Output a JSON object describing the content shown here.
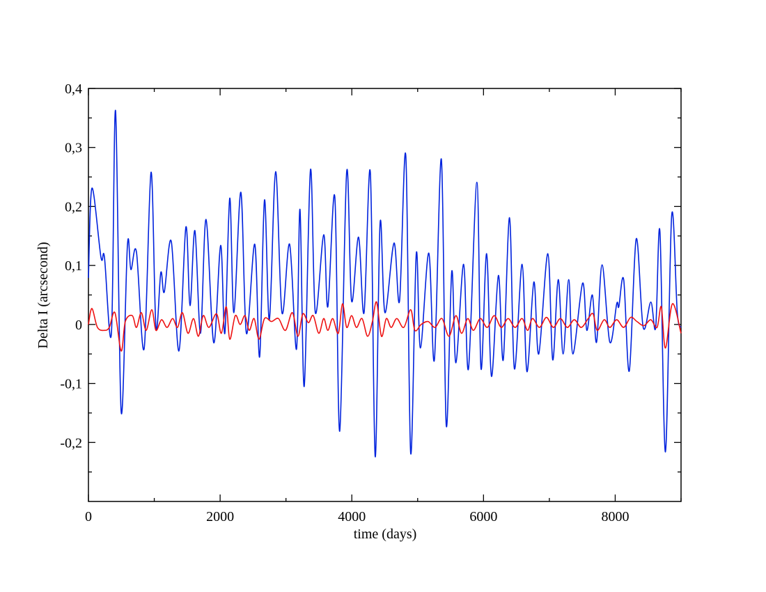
{
  "chart_data": {
    "type": "line",
    "xlabel": "time (days)",
    "ylabel": "Delta I (arcsecond)",
    "xlim": [
      0,
      9000
    ],
    "ylim": [
      -0.3,
      0.4
    ],
    "xticks": [
      0,
      2000,
      4000,
      6000,
      8000
    ],
    "xticks_minor": [
      1000,
      3000,
      5000,
      7000,
      9000
    ],
    "yticks": [
      {
        "value": -0.2,
        "label": "-0,2"
      },
      {
        "value": -0.1,
        "label": "-0,1"
      },
      0,
      {
        "value": 0.1,
        "label": "0,1"
      },
      {
        "value": 0.2,
        "label": "0,2"
      },
      {
        "value": 0.3,
        "label": "0,3"
      },
      {
        "value": 0.4,
        "label": "0,4"
      }
    ],
    "yticks_minor": [
      -0.25,
      -0.15,
      -0.05,
      0.05,
      0.15,
      0.25,
      0.35
    ],
    "series": [
      {
        "color": "#0022dd",
        "x": [
          0,
          53,
          190,
          243,
          349,
          412,
          497,
          592,
          645,
          729,
          846,
          951,
          1025,
          1099,
          1152,
          1258,
          1374,
          1480,
          1543,
          1617,
          1702,
          1786,
          1903,
          2008,
          2072,
          2146,
          2209,
          2315,
          2399,
          2526,
          2600,
          2674,
          2748,
          2843,
          2939,
          3055,
          3160,
          3213,
          3277,
          3372,
          3446,
          3573,
          3636,
          3742,
          3816,
          3922,
          3996,
          4102,
          4186,
          4281,
          4355,
          4429,
          4503,
          4641,
          4725,
          4820,
          4894,
          4979,
          5042,
          5169,
          5254,
          5360,
          5434,
          5518,
          5581,
          5698,
          5772,
          5899,
          5962,
          6047,
          6121,
          6226,
          6300,
          6395,
          6469,
          6586,
          6660,
          6765,
          6839,
          6977,
          7051,
          7135,
          7209,
          7294,
          7357,
          7505,
          7569,
          7653,
          7717,
          7801,
          7918,
          8023,
          8055,
          8129,
          8214,
          8319,
          8425,
          8541,
          8615,
          8679,
          8763,
          8858,
          8943,
          9000
        ],
        "values": [
          0.079,
          0.231,
          0.114,
          0.114,
          -0.015,
          0.362,
          -0.148,
          0.134,
          0.093,
          0.123,
          -0.041,
          0.258,
          -0.004,
          0.088,
          0.055,
          0.141,
          -0.045,
          0.165,
          0.032,
          0.159,
          -0.015,
          0.178,
          -0.031,
          0.134,
          -0.015,
          0.214,
          0.02,
          0.224,
          -0.015,
          0.136,
          -0.055,
          0.211,
          0.008,
          0.259,
          0.02,
          0.136,
          -0.042,
          0.195,
          -0.105,
          0.262,
          0.02,
          0.152,
          0.03,
          0.216,
          -0.181,
          0.259,
          0.04,
          0.148,
          0.02,
          0.258,
          -0.224,
          0.171,
          0.02,
          0.138,
          0.04,
          0.286,
          -0.218,
          0.12,
          -0.04,
          0.121,
          -0.06,
          0.28,
          -0.171,
          0.09,
          -0.065,
          0.102,
          -0.075,
          0.241,
          -0.075,
          0.12,
          -0.088,
          0.083,
          -0.06,
          0.181,
          -0.075,
          0.102,
          -0.08,
          0.072,
          -0.05,
          0.12,
          -0.06,
          0.076,
          -0.05,
          0.076,
          -0.05,
          0.07,
          -0.01,
          0.05,
          -0.03,
          0.101,
          -0.03,
          0.035,
          0.03,
          0.076,
          -0.079,
          0.145,
          -0.005,
          0.038,
          -0.005,
          0.158,
          -0.216,
          0.185,
          0.02,
          -0.005
        ]
      },
      {
        "color": "#ee1111",
        "x": [
          0,
          53,
          137,
          243,
          317,
          402,
          497,
          560,
          666,
          729,
          803,
          877,
          962,
          1025,
          1110,
          1194,
          1279,
          1353,
          1427,
          1512,
          1596,
          1670,
          1744,
          1829,
          1945,
          2019,
          2093,
          2146,
          2230,
          2304,
          2378,
          2442,
          2516,
          2590,
          2674,
          2780,
          2886,
          2992,
          3097,
          3182,
          3256,
          3340,
          3414,
          3499,
          3573,
          3636,
          3710,
          3795,
          3858,
          3922,
          3996,
          4070,
          4155,
          4239,
          4313,
          4376,
          4450,
          4524,
          4598,
          4683,
          4789,
          4894,
          4958,
          5053,
          5159,
          5264,
          5370,
          5476,
          5581,
          5666,
          5761,
          5846,
          5951,
          6057,
          6163,
          6269,
          6374,
          6480,
          6586,
          6670,
          6744,
          6850,
          6956,
          7061,
          7167,
          7273,
          7379,
          7484,
          7590,
          7664,
          7727,
          7833,
          7918,
          8023,
          8129,
          8235,
          8330,
          8436,
          8541,
          8636,
          8700,
          8763,
          8869,
          9000
        ],
        "values": [
          0,
          0.027,
          -0.005,
          -0.01,
          -0.005,
          0.02,
          -0.045,
          0.005,
          0.015,
          -0.005,
          0.02,
          -0.01,
          0.025,
          -0.01,
          0.008,
          -0.005,
          0.01,
          -0.005,
          0.02,
          -0.015,
          0.01,
          -0.02,
          0.015,
          -0.005,
          0.018,
          -0.015,
          0.03,
          -0.025,
          0.015,
          0,
          0.015,
          -0.01,
          0.01,
          -0.025,
          0.01,
          0.005,
          0.01,
          -0.01,
          0.02,
          -0.02,
          0.018,
          0.003,
          0.015,
          -0.015,
          0.01,
          -0.01,
          0.01,
          -0.015,
          0.035,
          -0.005,
          0.015,
          -0.005,
          0.01,
          -0.02,
          0.005,
          0.038,
          -0.02,
          0.01,
          -0.005,
          0.01,
          -0.005,
          0.025,
          -0.01,
          0,
          0.005,
          -0.005,
          0.01,
          -0.02,
          0.015,
          -0.015,
          0.01,
          -0.01,
          0.01,
          -0.005,
          0.015,
          -0.005,
          0.01,
          -0.005,
          0.01,
          -0.01,
          0.01,
          -0.005,
          0.012,
          -0.005,
          0.01,
          -0.005,
          0.008,
          -0.005,
          0.01,
          0.018,
          -0.01,
          0.008,
          -0.005,
          0.008,
          -0.005,
          0.012,
          0.005,
          -0.002,
          0.008,
          -0.005,
          0.03,
          -0.04,
          0.035,
          -0.015
        ]
      }
    ]
  }
}
